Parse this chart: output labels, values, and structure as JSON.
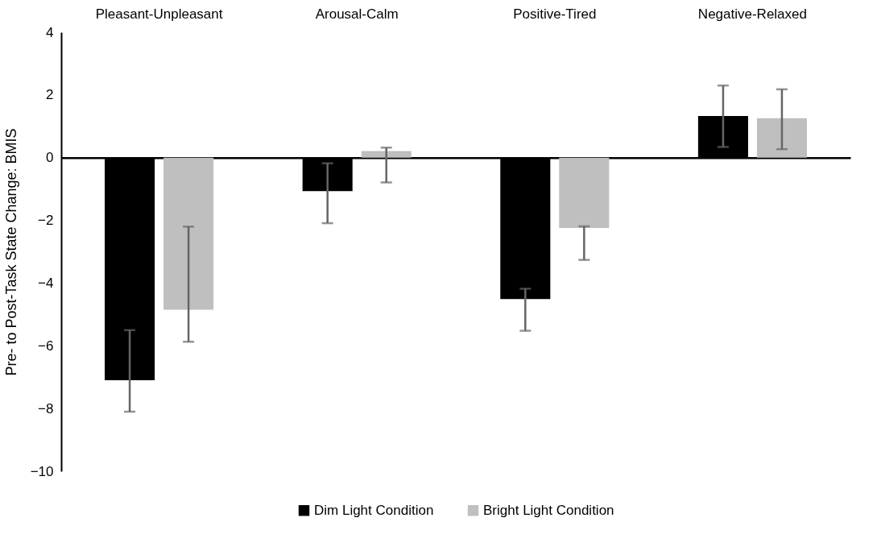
{
  "chart_data": {
    "type": "bar",
    "ylabel": "Pre- to Post-Task State Change: BMIS",
    "categories": [
      "Pleasant-Unpleasant",
      "Arousal-Calm",
      "Positive-Tired",
      "Negative-Relaxed"
    ],
    "series": [
      {
        "name": "Dim Light Condition",
        "color": "#000000",
        "values": [
          -7.1,
          -1.07,
          -4.51,
          1.33
        ],
        "errors": [
          [
            -8.1,
            -5.5
          ],
          [
            -2.09,
            -0.18
          ],
          [
            -5.52,
            -4.18
          ],
          [
            0.34,
            2.3
          ]
        ]
      },
      {
        "name": "Bright Light Condition",
        "color": "#bfbfbf",
        "values": [
          -4.85,
          0.21,
          -2.24,
          1.26
        ],
        "errors": [
          [
            -5.87,
            -2.2
          ],
          [
            -0.79,
            0.32
          ],
          [
            -3.26,
            -2.19
          ],
          [
            0.27,
            2.18
          ]
        ]
      }
    ],
    "ylim": [
      -10,
      4
    ],
    "yticks": [
      -10,
      -8,
      -6,
      -4,
      -2,
      0,
      2,
      4
    ],
    "legend": "bottom"
  }
}
